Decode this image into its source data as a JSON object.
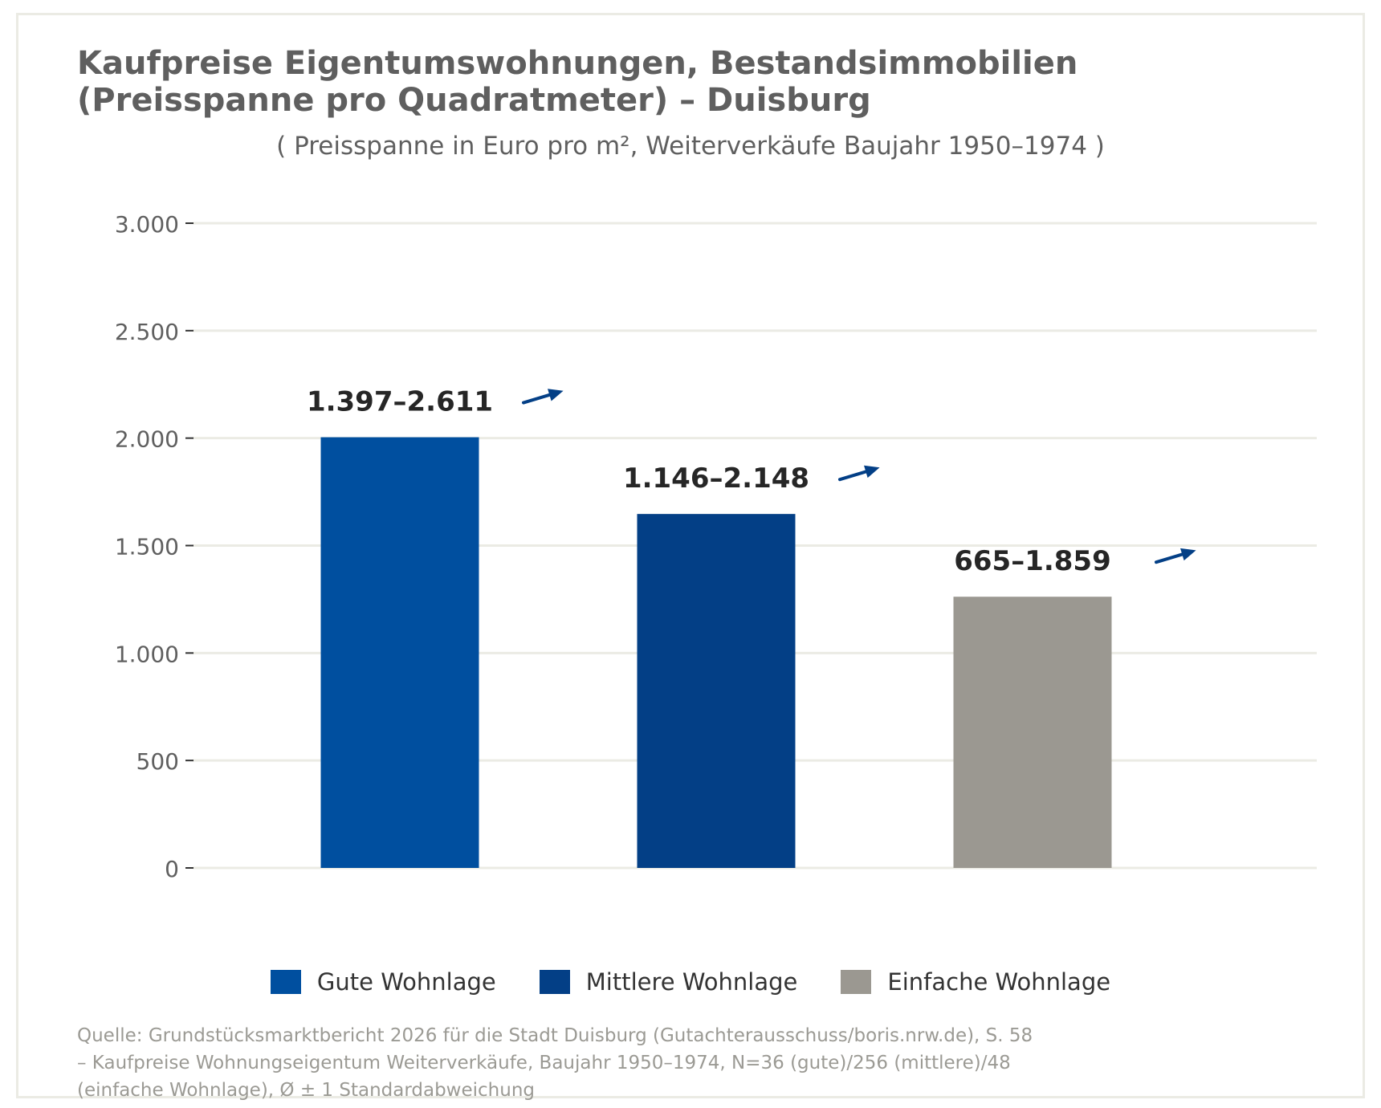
{
  "title": {
    "line1": "Kaufpreise Eigentumswohnungen, Bestandsimmobilien",
    "line2": "(Preisspanne pro Quadratmeter) – Duisburg"
  },
  "subtitle": "( Preisspanne in Euro pro m², Weiterverkäufe Baujahr 1950–1974 )",
  "source": {
    "line1": "Quelle: Grundstücksmarktbericht 2026 für die Stadt Duisburg (Gutachterausschuss/boris.nrw.de), S. 58",
    "line2": "– Kaufpreise Wohnungseigentum Weiterverkäufe, Baujahr 1950–1974, N=36 (gute)/256 (mittlere)/48",
    "line3": "(einfache Wohnlage), Ø ± 1 Standardabweichung"
  },
  "colors": {
    "gute": "#004f9f",
    "mittlere": "#033f86",
    "einfache": "#9b9891",
    "grid": "#ebebe4",
    "axis_text": "#5f5f5f",
    "label_text": "#262626",
    "arrow": "#033f86"
  },
  "chart_data": {
    "type": "bar",
    "categories": [
      "Gute Wohnlage",
      "Mittlere Wohnlage",
      "Einfache Wohnlage"
    ],
    "values": [
      2004,
      1647,
      1262
    ],
    "range_labels": [
      "1.397–2.611",
      "1.146–2.148",
      "665–1.859"
    ],
    "ylim": [
      0,
      3000
    ],
    "yticks": [
      0,
      500,
      1000,
      1500,
      2000,
      2500,
      3000
    ],
    "ytick_labels": [
      "0",
      "500",
      "1.000",
      "1.500",
      "2.000",
      "2.500",
      "3.000"
    ],
    "grid": true,
    "legend": {
      "position": "bottom",
      "entries": [
        "Gute Wohnlage",
        "Mittlere Wohnlage",
        "Einfache Wohnlage"
      ]
    },
    "annotations": "arrow pointing up-right next to each range label"
  }
}
